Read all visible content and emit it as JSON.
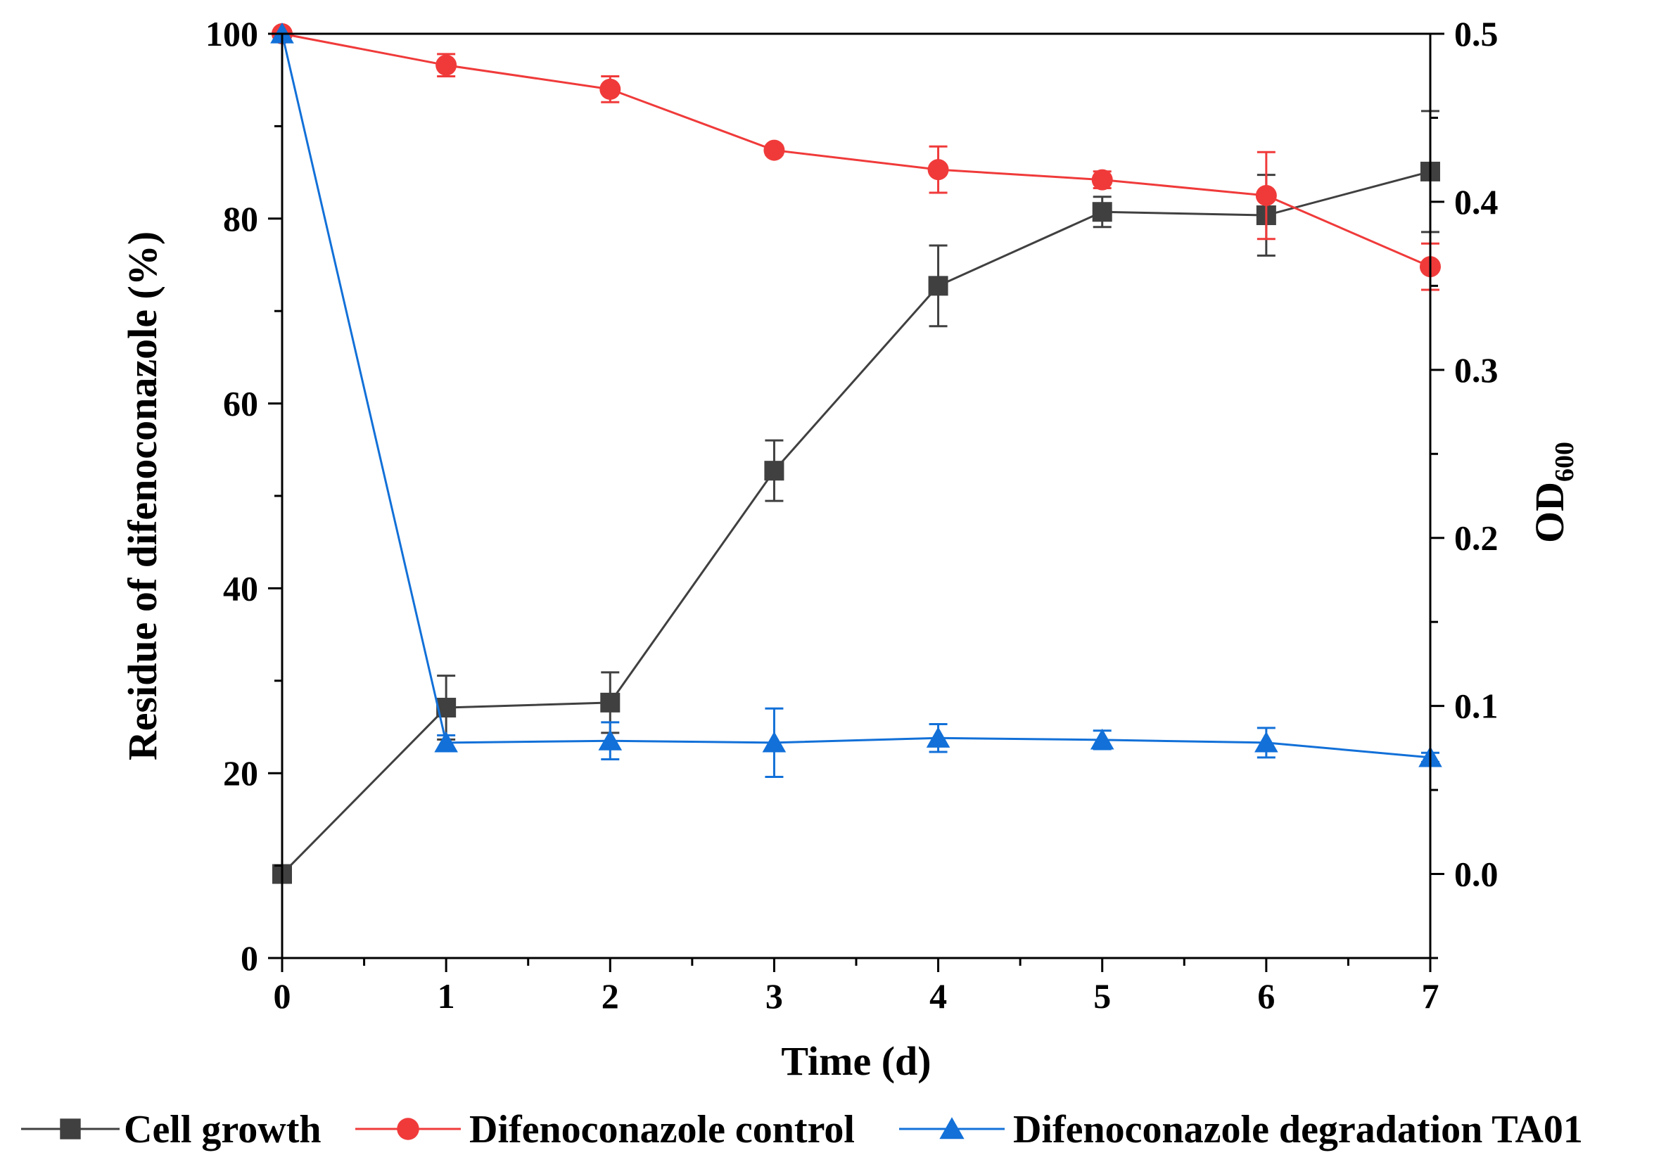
{
  "chart_data": {
    "type": "line",
    "x": [
      0,
      1,
      2,
      3,
      4,
      5,
      6,
      7
    ],
    "xlabel": "Time (d)",
    "ylabel_left": "Residue of difenoconazole (%)",
    "ylabel_right_main": "OD",
    "ylabel_right_sub": "600",
    "xlim": [
      0,
      7
    ],
    "ylim_left": [
      0,
      100
    ],
    "ylim_right": [
      -0.05,
      0.5
    ],
    "x_ticks": [
      0,
      1,
      2,
      3,
      4,
      5,
      6,
      7
    ],
    "y_ticks_left": [
      0,
      20,
      40,
      60,
      80,
      100
    ],
    "y_ticks_right": [
      0.0,
      0.1,
      0.2,
      0.3,
      0.4,
      0.5
    ],
    "y_tick_labels_left": [
      "0",
      "20",
      "40",
      "60",
      "80",
      "100"
    ],
    "y_tick_labels_right": [
      "0.0",
      "0.1",
      "0.2",
      "0.3",
      "0.4",
      "0.5"
    ],
    "x_tick_labels": [
      "0",
      "1",
      "2",
      "3",
      "4",
      "5",
      "6",
      "7"
    ],
    "legend_position": "bottom",
    "series": [
      {
        "name": "Cell growth",
        "axis": "right",
        "marker": "square",
        "color": "#404040",
        "values": [
          0.0,
          0.099,
          0.102,
          0.24,
          0.35,
          0.394,
          0.392,
          0.418
        ],
        "errors": [
          0.0,
          0.019,
          0.018,
          0.018,
          0.024,
          0.009,
          0.024,
          0.036
        ]
      },
      {
        "name": "Difenoconazole control",
        "axis": "left",
        "marker": "circle",
        "color": "#F03A3A",
        "values": [
          100,
          96.6,
          94.0,
          87.4,
          85.3,
          84.2,
          82.5,
          74.8
        ],
        "errors": [
          0,
          1.2,
          1.4,
          0.5,
          2.5,
          0.9,
          4.7,
          2.5
        ]
      },
      {
        "name": "Difenoconazole degradation TA01",
        "axis": "left",
        "marker": "triangle",
        "color": "#1270D8",
        "values": [
          100,
          23.3,
          23.5,
          23.3,
          23.8,
          23.6,
          23.3,
          21.7
        ],
        "errors": [
          0,
          0.8,
          2.0,
          3.7,
          1.5,
          1.0,
          1.6,
          0.5
        ]
      }
    ]
  }
}
